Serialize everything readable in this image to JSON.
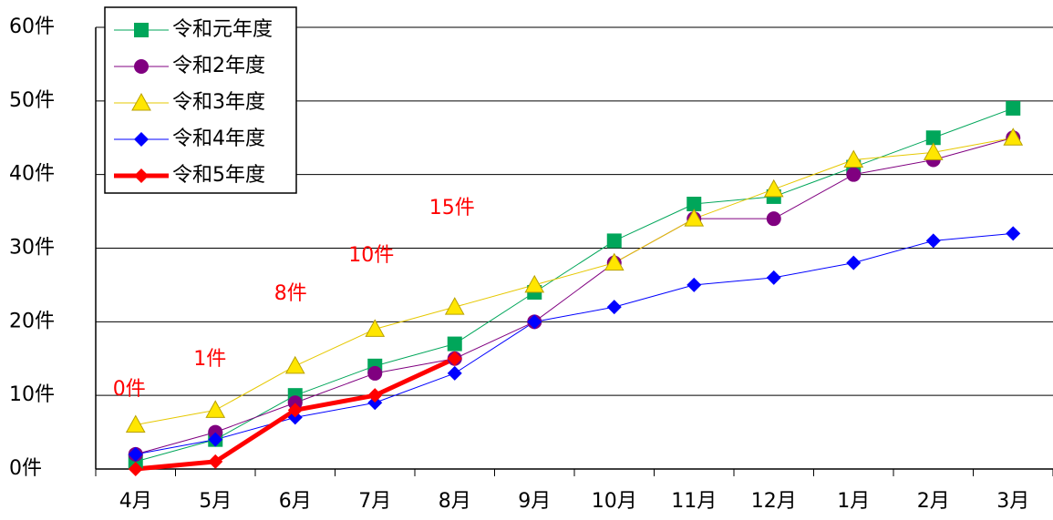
{
  "chart_data": {
    "type": "line",
    "categories": [
      "4月",
      "5月",
      "6月",
      "7月",
      "8月",
      "9月",
      "10月",
      "11月",
      "12月",
      "1月",
      "2月",
      "3月"
    ],
    "series": [
      {
        "name": "令和元年度",
        "color": "#00a65a",
        "marker": "square",
        "line_width": 1,
        "values": [
          1,
          4,
          10,
          14,
          17,
          24,
          31,
          36,
          37,
          41,
          45,
          49
        ]
      },
      {
        "name": "令和2年度",
        "color": "#800080",
        "marker": "circle",
        "line_width": 1,
        "values": [
          2,
          5,
          9,
          13,
          15,
          20,
          28,
          34,
          34,
          40,
          42,
          45
        ]
      },
      {
        "name": "令和3年度",
        "color": "#ffe600",
        "marker": "triangle",
        "line_width": 1,
        "values": [
          6,
          8,
          14,
          19,
          22,
          25,
          28,
          34,
          38,
          42,
          43,
          45
        ]
      },
      {
        "name": "令和4年度",
        "color": "#0000ff",
        "marker": "diamond",
        "line_width": 1,
        "values": [
          2,
          4,
          7,
          9,
          13,
          20,
          22,
          25,
          26,
          28,
          31,
          32
        ]
      },
      {
        "name": "令和5年度",
        "color": "#ff0000",
        "marker": "diamond",
        "line_width": 5,
        "values": [
          0,
          1,
          8,
          10,
          15,
          null,
          null,
          null,
          null,
          null,
          null,
          null
        ],
        "value_labels": [
          "0件",
          "1件",
          "8件",
          "10件",
          "15件",
          null,
          null,
          null,
          null,
          null,
          null,
          null
        ]
      }
    ],
    "ylim": [
      0,
      60
    ],
    "yticks": [
      {
        "value": 0,
        "label": "0件"
      },
      {
        "value": 10,
        "label": "10件"
      },
      {
        "value": 20,
        "label": "20件"
      },
      {
        "value": 30,
        "label": "30件"
      },
      {
        "value": 40,
        "label": "40件"
      },
      {
        "value": 50,
        "label": "50件"
      },
      {
        "value": 60,
        "label": "60件"
      }
    ],
    "grid": true,
    "legend": "upper left"
  }
}
